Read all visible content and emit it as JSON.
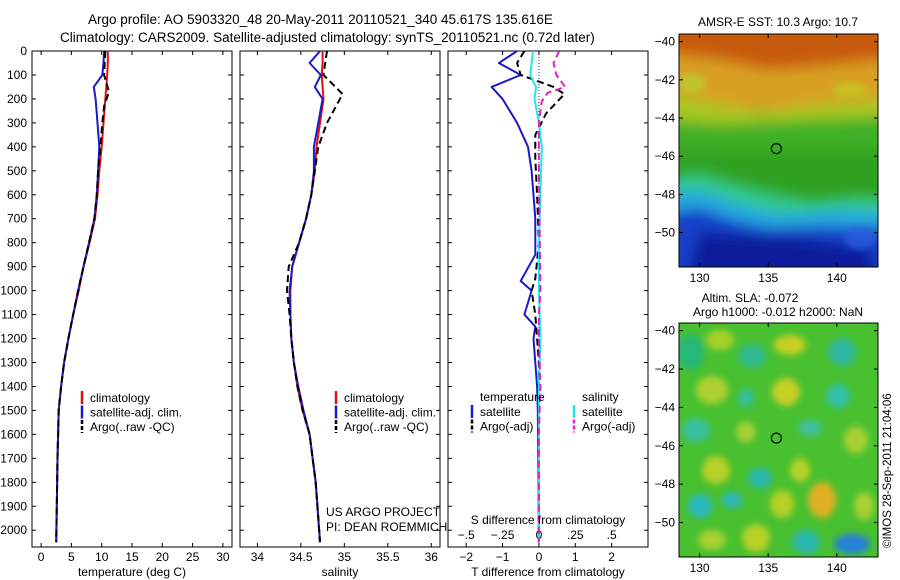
{
  "header": {
    "line1": "Argo profile: AO 5903320_48 20-May-2011 20110521_340 45.617S 135.616E",
    "line2": "Climatology: CARS2009. Satellite-adjusted climatology: synTS_20110521.nc (0.72d later)"
  },
  "colors": {
    "climatology": "#e01010",
    "satellite": "#1a1acc",
    "argo": "#000000",
    "satellite_s": "#22e8e8",
    "argo_s": "#e020c8"
  },
  "chart_data": [
    {
      "type": "line",
      "title": "",
      "xlabel": "temperature (deg C)",
      "ylabel": "",
      "xlim": [
        -1.5,
        31.5
      ],
      "ylim": [
        2070,
        0
      ],
      "xticks": [
        0,
        5,
        10,
        15,
        20,
        25,
        30
      ],
      "yticks": [
        0,
        100,
        200,
        300,
        400,
        500,
        600,
        700,
        800,
        900,
        1000,
        1100,
        1200,
        1300,
        1400,
        1500,
        1600,
        1700,
        1800,
        1900,
        2000
      ],
      "legend": [
        "climatology",
        "satellite-adj. clim.",
        "Argo(..raw -QC)"
      ],
      "legend_position": "center-right",
      "series": [
        {
          "name": "climatology",
          "color": "#e01010",
          "style": "solid",
          "x": [
            11.0,
            11.0,
            10.9,
            10.8,
            10.6,
            10.3,
            10.0,
            9.6,
            9.3,
            8.9,
            8.0,
            7.0,
            6.2,
            5.3,
            4.5,
            3.8,
            3.3,
            2.9,
            2.7,
            2.6,
            2.5
          ],
          "y": [
            0,
            50,
            100,
            140,
            200,
            300,
            400,
            500,
            600,
            700,
            800,
            900,
            1000,
            1100,
            1200,
            1300,
            1400,
            1500,
            1700,
            1900,
            2050
          ]
        },
        {
          "name": "satellite-adj. clim.",
          "color": "#1a1acc",
          "style": "solid",
          "x": [
            10.4,
            10.3,
            10.1,
            8.7,
            9.0,
            9.3,
            9.6,
            9.4,
            9.2,
            8.8,
            7.9,
            7.0,
            6.1,
            5.3,
            4.5,
            3.8,
            3.3,
            2.9,
            2.7,
            2.6,
            2.5
          ],
          "y": [
            0,
            50,
            100,
            150,
            200,
            300,
            400,
            500,
            600,
            700,
            800,
            900,
            1000,
            1100,
            1200,
            1300,
            1400,
            1500,
            1700,
            1900,
            2050
          ]
        },
        {
          "name": "Argo(..raw -QC)",
          "color": "#000000",
          "style": "dashed",
          "x": [
            10.6,
            10.5,
            10.4,
            11.2,
            10.4,
            10.1,
            9.8,
            9.4,
            9.2,
            8.8,
            7.9,
            7.0,
            6.1,
            5.3,
            4.5,
            3.8,
            3.3,
            2.9,
            2.7,
            2.6,
            2.5
          ],
          "y": [
            0,
            50,
            100,
            170,
            230,
            300,
            400,
            500,
            600,
            700,
            800,
            900,
            1000,
            1100,
            1200,
            1300,
            1400,
            1500,
            1700,
            1900,
            2050
          ]
        }
      ]
    },
    {
      "type": "line",
      "title": "",
      "xlabel": "salinity",
      "ylabel": "",
      "xlim": [
        33.8,
        36.1
      ],
      "ylim": [
        2070,
        0
      ],
      "xticks": [
        34,
        34.5,
        35,
        35.5,
        36
      ],
      "legend": [
        "climatology",
        "satellite-adj. clim.",
        "Argo(..raw -QC)"
      ],
      "legend_position": "center-right",
      "annotation": [
        "US ARGO PROJECT",
        "PI: DEAN ROEMMICH"
      ],
      "series": [
        {
          "name": "climatology",
          "color": "#e01010",
          "style": "solid",
          "x": [
            34.75,
            34.75,
            34.74,
            34.76,
            34.72,
            34.68,
            34.66,
            34.62,
            34.56,
            34.48,
            34.4,
            34.38,
            34.38,
            34.39,
            34.42,
            34.46,
            34.52,
            34.6,
            34.67,
            34.7,
            34.72
          ],
          "y": [
            0,
            50,
            100,
            200,
            300,
            400,
            500,
            600,
            700,
            800,
            900,
            1000,
            1100,
            1200,
            1300,
            1400,
            1500,
            1600,
            1800,
            1950,
            2050
          ]
        },
        {
          "name": "satellite-adj. clim.",
          "color": "#1a1acc",
          "style": "solid",
          "x": [
            34.72,
            34.6,
            34.73,
            34.66,
            34.75,
            34.7,
            34.65,
            34.65,
            34.62,
            34.56,
            34.48,
            34.4,
            34.37,
            34.38,
            34.39,
            34.42,
            34.47,
            34.53,
            34.6,
            34.67,
            34.7,
            34.72
          ],
          "y": [
            0,
            50,
            100,
            150,
            200,
            300,
            400,
            500,
            600,
            700,
            800,
            900,
            1000,
            1100,
            1200,
            1300,
            1400,
            1500,
            1600,
            1800,
            1950,
            2050
          ]
        },
        {
          "name": "Argo(..raw -QC)",
          "color": "#000000",
          "style": "dashed",
          "x": [
            34.8,
            34.78,
            34.76,
            34.98,
            34.8,
            34.7,
            34.66,
            34.62,
            34.56,
            34.48,
            34.36,
            34.34,
            34.37,
            34.39,
            34.42,
            34.46,
            34.52,
            34.6,
            34.67,
            34.7,
            34.72
          ],
          "y": [
            0,
            50,
            100,
            180,
            300,
            400,
            500,
            600,
            700,
            800,
            900,
            1000,
            1100,
            1200,
            1300,
            1400,
            1500,
            1600,
            1800,
            1950,
            2050
          ]
        }
      ]
    },
    {
      "type": "line",
      "title": "",
      "xlabel": "T difference from climatology",
      "xlabel_top": "S difference from climatology",
      "ylabel": "",
      "xlim": [
        -2.5,
        3.0
      ],
      "xlim_top": [
        -0.625,
        0.75
      ],
      "ylim": [
        2070,
        0
      ],
      "xticks": [
        -2,
        -1,
        0,
        1,
        2
      ],
      "xticks_top": [
        -0.5,
        -0.25,
        0,
        0.25,
        0.5
      ],
      "legend_titles": [
        "temperature",
        "salinity"
      ],
      "legend": [
        "satellite",
        "Argo(-adj)",
        "satellite",
        "Argo(-adj)"
      ],
      "legend_position": "center-right",
      "series": [
        {
          "name": "satellite",
          "group": "temperature",
          "color": "#1a1acc",
          "style": "solid",
          "x": [
            -0.6,
            -1.1,
            -0.5,
            -1.3,
            -1.0,
            -0.6,
            -0.3,
            -0.2,
            -0.15,
            -0.1,
            -0.1,
            -0.5,
            -0.2,
            -0.4,
            -0.1,
            -0.15,
            -0.1,
            -0.05,
            -0.03,
            -0.01,
            0
          ],
          "y": [
            0,
            50,
            100,
            150,
            200,
            300,
            400,
            500,
            600,
            700,
            850,
            960,
            1000,
            1100,
            1150,
            1200,
            1300,
            1400,
            1500,
            1800,
            2050
          ]
        },
        {
          "name": "Argo(-adj)",
          "group": "temperature",
          "color": "#000000",
          "style": "dashed",
          "x": [
            -0.4,
            -0.6,
            -0.5,
            0.4,
            0.7,
            0.2,
            -0.1,
            -0.1,
            -0.05,
            0,
            -0.1,
            -0.2,
            -0.1,
            -0.05,
            0,
            0,
            0,
            0
          ],
          "y": [
            0,
            50,
            100,
            150,
            180,
            260,
            350,
            450,
            600,
            800,
            950,
            1000,
            1100,
            1200,
            1300,
            1500,
            1800,
            2050
          ]
        },
        {
          "name": "satellite",
          "group": "salinity",
          "color": "#22e8e8",
          "style": "solid",
          "x": [
            -0.04,
            -0.06,
            -0.02,
            -0.03,
            0.0,
            0.02,
            0.01,
            0.0,
            0.0,
            0.01,
            0.0,
            0.0,
            0.0
          ],
          "y": [
            0,
            100,
            150,
            200,
            300,
            400,
            600,
            800,
            1000,
            1200,
            1400,
            1700,
            2050
          ]
        },
        {
          "name": "Argo(-adj)",
          "group": "salinity",
          "color": "#e020c8",
          "style": "dashed",
          "x": [
            0.14,
            0.1,
            0.12,
            0.18,
            0.06,
            0.02,
            0.0,
            0.0,
            0.01,
            0.0,
            0.0,
            0.01,
            0.0,
            0.0
          ],
          "y": [
            0,
            50,
            100,
            150,
            175,
            210,
            300,
            500,
            1000,
            1100,
            1200,
            1400,
            1600,
            2050
          ]
        }
      ]
    },
    {
      "type": "heatmap",
      "title": "AMSR-E SST: 10.3 Argo: 10.7",
      "xlim": [
        128.5,
        143
      ],
      "ylim": [
        -51.8,
        -39.6
      ],
      "xticks": [
        130,
        135,
        140
      ],
      "yticks": [
        -40,
        -42,
        -44,
        -46,
        -48,
        -50
      ],
      "marker": {
        "x": 135.6,
        "y": -45.6
      }
    },
    {
      "type": "heatmap",
      "title": "Altim. SLA: -0.072",
      "subtitle": "Argo h1000: -0.012 h2000: NaN",
      "xlim": [
        128.5,
        143
      ],
      "ylim": [
        -51.8,
        -39.6
      ],
      "xticks": [
        130,
        135,
        140
      ],
      "yticks": [
        -40,
        -42,
        -44,
        -46,
        -48,
        -50
      ],
      "marker": {
        "x": 135.6,
        "y": -45.6
      }
    }
  ],
  "stamp": "©IMOS 28-Sep-2011 21:04:06"
}
